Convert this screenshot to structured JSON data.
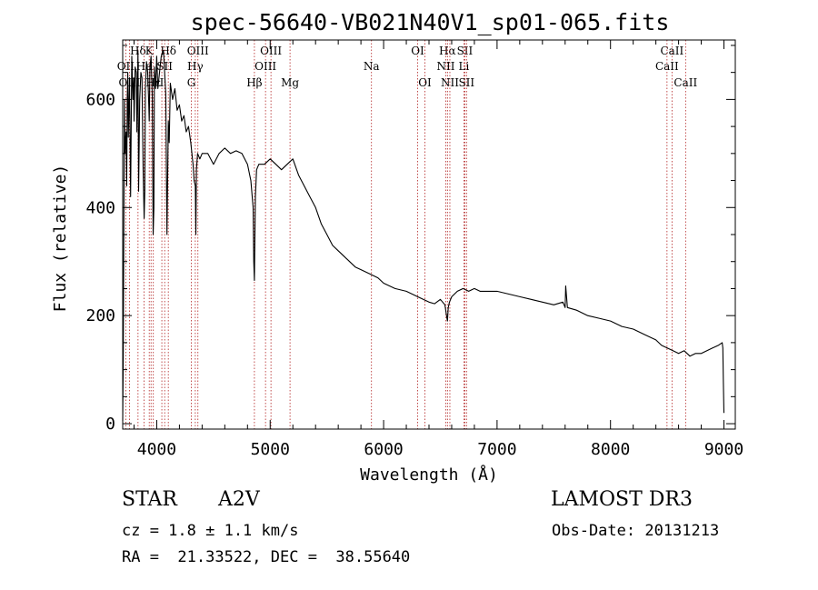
{
  "chart_data": {
    "type": "line",
    "title": "spec-56640-VB021N40V1_sp01-065.fits",
    "xlabel": "Wavelength (Å)",
    "ylabel": "Flux (relative)",
    "xlim": [
      3700,
      9100
    ],
    "ylim": [
      -10,
      710
    ],
    "xticks": [
      4000,
      5000,
      6000,
      7000,
      8000,
      9000
    ],
    "yticks": [
      0,
      200,
      400,
      600
    ],
    "x": [
      3700,
      3705,
      3710,
      3715,
      3720,
      3730,
      3735,
      3740,
      3745,
      3750,
      3760,
      3770,
      3780,
      3790,
      3797,
      3800,
      3810,
      3820,
      3825,
      3835,
      3840,
      3850,
      3860,
      3870,
      3880,
      3889,
      3895,
      3900,
      3910,
      3920,
      3930,
      3934,
      3940,
      3950,
      3960,
      3968,
      3975,
      3980,
      3990,
      4000,
      4010,
      4020,
      4040,
      4060,
      4080,
      4090,
      4102,
      4110,
      4120,
      4140,
      4160,
      4180,
      4200,
      4220,
      4240,
      4260,
      4280,
      4300,
      4320,
      4330,
      4340,
      4345,
      4350,
      4360,
      4380,
      4400,
      4450,
      4500,
      4550,
      4600,
      4650,
      4700,
      4750,
      4800,
      4830,
      4850,
      4855,
      4861,
      4867,
      4870,
      4880,
      4900,
      4950,
      5000,
      5050,
      5100,
      5150,
      5200,
      5250,
      5300,
      5350,
      5400,
      5450,
      5500,
      5550,
      5600,
      5650,
      5700,
      5750,
      5800,
      5850,
      5900,
      5950,
      6000,
      6100,
      6200,
      6300,
      6400,
      6450,
      6500,
      6540,
      6555,
      6563,
      6570,
      6580,
      6600,
      6650,
      6700,
      6750,
      6800,
      6850,
      6900,
      7000,
      7100,
      7200,
      7300,
      7400,
      7500,
      7580,
      7600,
      7605,
      7620,
      7700,
      7800,
      7900,
      8000,
      8100,
      8200,
      8300,
      8400,
      8450,
      8500,
      8550,
      8600,
      8650,
      8700,
      8750,
      8800,
      8850,
      8900,
      8950,
      8985,
      8990,
      8995,
      9000
    ],
    "y": [
      5,
      120,
      350,
      600,
      500,
      540,
      440,
      600,
      650,
      530,
      640,
      420,
      680,
      600,
      640,
      560,
      660,
      650,
      540,
      690,
      430,
      600,
      650,
      640,
      470,
      380,
      430,
      620,
      670,
      650,
      590,
      560,
      660,
      680,
      610,
      350,
      400,
      660,
      620,
      680,
      620,
      640,
      680,
      690,
      610,
      350,
      560,
      520,
      630,
      600,
      620,
      580,
      590,
      560,
      570,
      540,
      550,
      520,
      480,
      450,
      440,
      350,
      470,
      500,
      490,
      500,
      500,
      480,
      500,
      510,
      500,
      505,
      500,
      480,
      450,
      400,
      300,
      265,
      380,
      420,
      470,
      480,
      480,
      490,
      480,
      470,
      480,
      490,
      460,
      440,
      420,
      400,
      370,
      350,
      330,
      320,
      310,
      300,
      290,
      285,
      280,
      275,
      270,
      260,
      250,
      245,
      235,
      225,
      222,
      230,
      220,
      200,
      190,
      215,
      225,
      235,
      245,
      250,
      245,
      250,
      245,
      245,
      245,
      240,
      235,
      230,
      225,
      220,
      225,
      215,
      255,
      215,
      210,
      200,
      195,
      190,
      180,
      175,
      165,
      155,
      145,
      140,
      135,
      130,
      135,
      125,
      130,
      130,
      135,
      140,
      145,
      150,
      140,
      75,
      20
    ]
  },
  "lines": {
    "top": [
      {
        "label": "Hδ",
        "wl": 3835
      },
      {
        "label": "K",
        "wl": 3934
      },
      {
        "label": "Hδ",
        "wl": 4102
      },
      {
        "label": "OIII",
        "wl": 4363
      },
      {
        "label": "OIII",
        "wl": 5007
      },
      {
        "label": "OI",
        "wl": 6300
      },
      {
        "label": "Hα",
        "wl": 6563
      },
      {
        "label": "SII",
        "wl": 6716
      },
      {
        "label": "CaII",
        "wl": 8542
      }
    ],
    "mid": [
      {
        "label": "OII",
        "wl": 3727
      },
      {
        "label": "He",
        "wl": 3889
      },
      {
        "label": "I",
        "wl": 3950
      },
      {
        "label": "SII",
        "wl": 4070
      },
      {
        "label": "Hγ",
        "wl": 4340
      },
      {
        "label": "OIII",
        "wl": 4959
      },
      {
        "label": "Na",
        "wl": 5893
      },
      {
        "label": "NII",
        "wl": 6548
      },
      {
        "label": "Li",
        "wl": 6708
      },
      {
        "label": "CaII",
        "wl": 8498
      }
    ],
    "low": [
      {
        "label": "OIII",
        "wl": 3760
      },
      {
        "label": "Hε",
        "wl": 3970
      },
      {
        "label": "I",
        "wl": 4045
      },
      {
        "label": "G",
        "wl": 4305
      },
      {
        "label": "Hβ",
        "wl": 4861
      },
      {
        "label": "Mg",
        "wl": 5175
      },
      {
        "label": "OI",
        "wl": 6364
      },
      {
        "label": "NII",
        "wl": 6584
      },
      {
        "label": "SII",
        "wl": 6731
      },
      {
        "label": "CaII",
        "wl": 8662
      }
    ]
  },
  "info": {
    "object_class": "STAR",
    "subclass": "A2V",
    "survey": "LAMOST DR3",
    "redshift": "cz = 1.8 ± 1.1 km/s",
    "obs_date": "Obs-Date: 20131213",
    "coords": "RA =  21.33522, DEC =  38.55640"
  }
}
